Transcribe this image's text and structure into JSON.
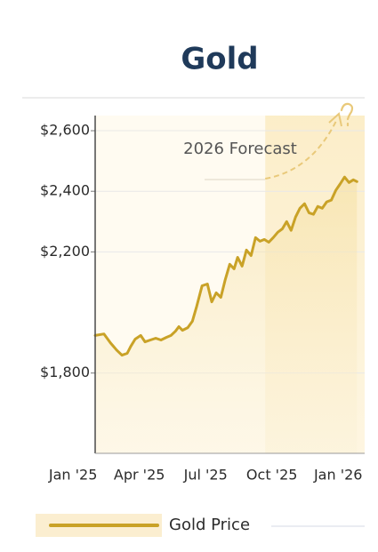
{
  "chart_data": {
    "type": "line",
    "title": "Gold",
    "annotation": {
      "text": "2026 Forecast",
      "x_start": 8.7
    },
    "series": [
      {
        "name": "Gold Price",
        "color": "#c9a227",
        "x": [
          1.0,
          1.4,
          1.69,
          1.97,
          2.21,
          2.45,
          2.61,
          2.81,
          3.06,
          3.26,
          3.5,
          3.74,
          3.98,
          4.23,
          4.43,
          4.63,
          4.79,
          4.95,
          5.19,
          5.4,
          5.6,
          5.84,
          6.08,
          6.28,
          6.48,
          6.69,
          6.89,
          7.09,
          7.29,
          7.45,
          7.65,
          7.85,
          8.06,
          8.26,
          8.46,
          8.66,
          8.86,
          9.06,
          9.27,
          9.47,
          9.67,
          9.87,
          10.07,
          10.27,
          10.48,
          10.68,
          10.88,
          11.08,
          11.28,
          11.48,
          11.69,
          11.89,
          12.09,
          12.29,
          12.49,
          12.69,
          12.85
        ],
        "values": [
          1924,
          1929,
          1900,
          1876,
          1859,
          1865,
          1888,
          1912,
          1924,
          1903,
          1909,
          1915,
          1909,
          1918,
          1924,
          1938,
          1953,
          1941,
          1950,
          1971,
          2021,
          2088,
          2094,
          2035,
          2065,
          2050,
          2109,
          2159,
          2144,
          2182,
          2153,
          2206,
          2188,
          2247,
          2235,
          2241,
          2232,
          2247,
          2265,
          2276,
          2300,
          2271,
          2315,
          2344,
          2359,
          2329,
          2324,
          2350,
          2344,
          2365,
          2371,
          2403,
          2424,
          2447,
          2429,
          2438,
          2432
        ]
      }
    ],
    "xlim": [
      1,
      13.2
    ],
    "xticks": [
      {
        "value": 0,
        "label": "Jan '25"
      },
      {
        "value": 3,
        "label": "Apr '25"
      },
      {
        "value": 6,
        "label": "Jul '25"
      },
      {
        "value": 9,
        "label": "Oct '25"
      },
      {
        "value": 12,
        "label": "Jan '26"
      }
    ],
    "ylim": [
      1535,
      2650
    ],
    "yticks": [
      {
        "value": 1800,
        "label": "$1,800"
      },
      {
        "value": 2200,
        "label": "$2,200"
      },
      {
        "value": 2400,
        "label": "$2,400"
      },
      {
        "value": 2600,
        "label": "$2,600"
      }
    ],
    "grid": true
  }
}
